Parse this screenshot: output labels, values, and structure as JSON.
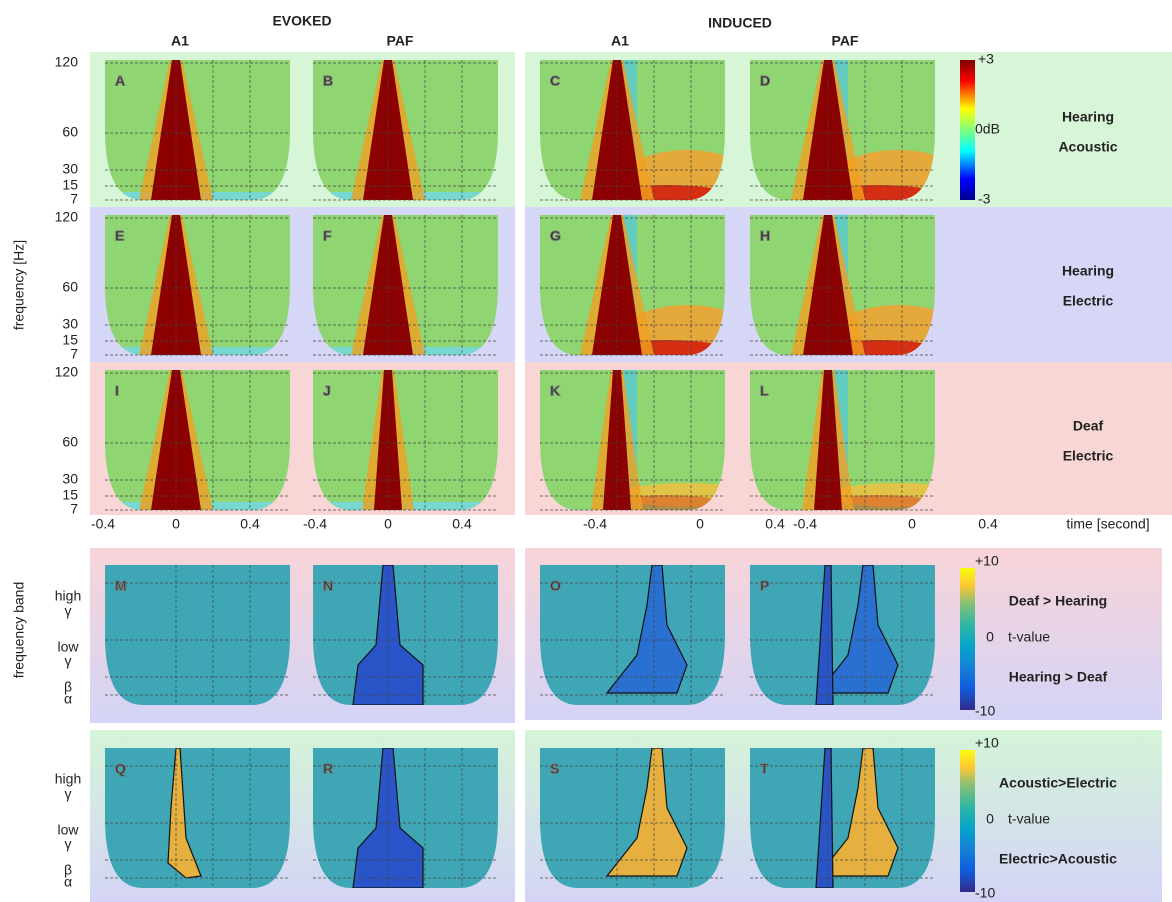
{
  "headers": {
    "evoked": "EVOKED",
    "induced": "INDUCED"
  },
  "columns": [
    "A1",
    "PAF",
    "A1",
    "PAF"
  ],
  "y_axis_label": "frequency [Hz]",
  "y_ticks": [
    "120",
    "60",
    "30",
    "15",
    "7"
  ],
  "x_ticks": [
    "-0.4",
    "0",
    "0.4",
    "-0.4",
    "0",
    "0.4",
    "-0.4",
    "0",
    "0.4",
    "-0.4",
    "0",
    "0.4"
  ],
  "x_axis_label": "time [second]",
  "panels": [
    "A",
    "B",
    "C",
    "D",
    "E",
    "F",
    "G",
    "H",
    "I",
    "J",
    "K",
    "L",
    "M",
    "N",
    "O",
    "P",
    "Q",
    "R",
    "S",
    "T"
  ],
  "rows": [
    [
      "Hearing",
      "Acoustic"
    ],
    [
      "Hearing",
      "Electric"
    ],
    [
      "Deaf",
      "Electric"
    ]
  ],
  "colorbar": {
    "max": "+3",
    "mid": "0dB",
    "min": "-3"
  },
  "band_axis_label": "frequency band",
  "band_ticks": [
    [
      "high",
      "γ"
    ],
    [
      "low",
      "γ"
    ],
    [
      "β"
    ],
    [
      "α"
    ]
  ],
  "comparisons": [
    {
      "max": "+10",
      "top": "Deaf > Hearing",
      "zero": "0",
      "unit": "t-value",
      "bottom": "Hearing > Deaf",
      "min": "-10"
    },
    {
      "max": "+10",
      "top": "Acoustic>Electric",
      "zero": "0",
      "unit": "t-value",
      "bottom": "Electric>Acoustic",
      "min": "-10"
    }
  ]
}
